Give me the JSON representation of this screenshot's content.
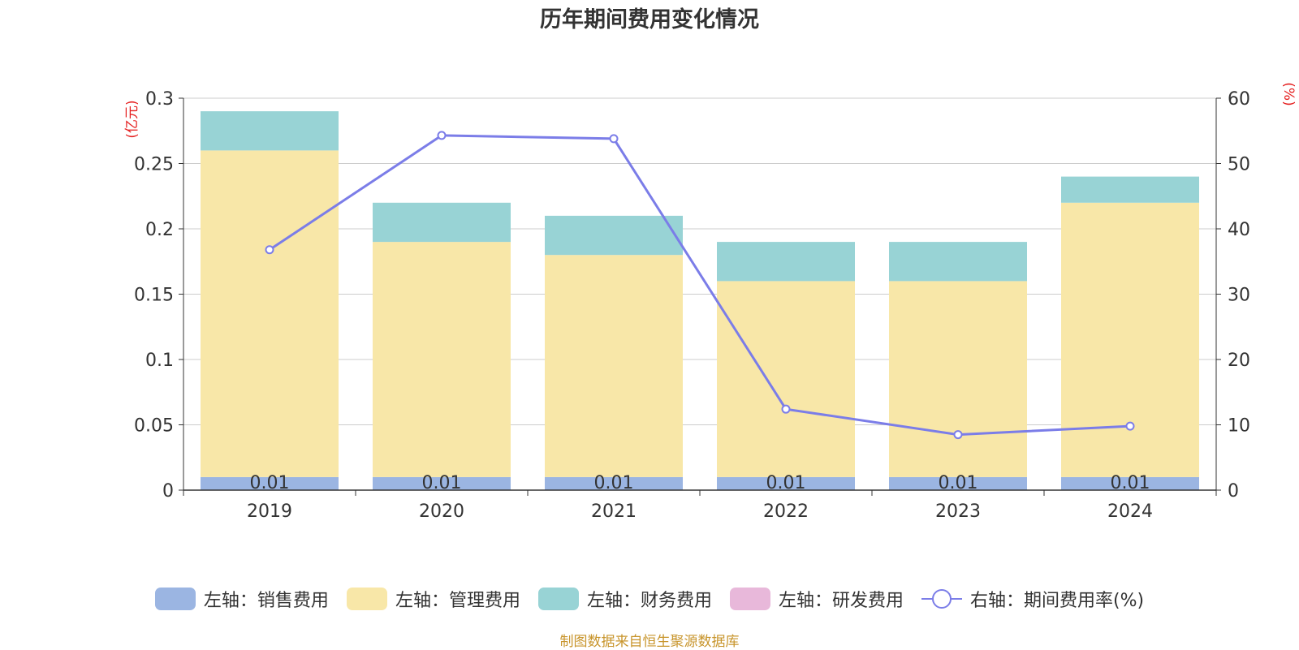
{
  "chart_data": {
    "type": "bar",
    "title": "历年期间费用变化情况",
    "categories": [
      "2019",
      "2020",
      "2021",
      "2022",
      "2023",
      "2024"
    ],
    "left_axis": {
      "label": "(亿元)",
      "ylim": [
        0,
        0.3
      ],
      "ticks": [
        "0",
        "0.05",
        "0.1",
        "0.15",
        "0.2",
        "0.25",
        "0.3"
      ]
    },
    "right_axis": {
      "label": "(%)",
      "ylim": [
        0,
        60
      ],
      "ticks": [
        "0",
        "10",
        "20",
        "30",
        "40",
        "50",
        "60"
      ]
    },
    "stacked": true,
    "series": [
      {
        "name": "左轴：销售费用",
        "color": "#9bb5e2",
        "values": [
          0.01,
          0.01,
          0.01,
          0.01,
          0.01,
          0.01
        ],
        "data_labels": [
          "0.01",
          "0.01",
          "0.01",
          "0.01",
          "0.01",
          "0.01"
        ]
      },
      {
        "name": "左轴：管理费用",
        "color": "#f8e7a8",
        "values": [
          0.25,
          0.18,
          0.17,
          0.15,
          0.15,
          0.21
        ]
      },
      {
        "name": "左轴：财务费用",
        "color": "#98d3d5",
        "values": [
          0.03,
          0.03,
          0.03,
          0.03,
          0.03,
          0.02
        ]
      },
      {
        "name": "左轴：研发费用",
        "color": "#e8b8da",
        "values": [
          0,
          0,
          0,
          0,
          0,
          0
        ]
      }
    ],
    "line_series": {
      "name": "右轴：期间费用率(%)",
      "color": "#7b7de8",
      "axis": "right",
      "values": [
        36.8,
        54.3,
        53.8,
        12.4,
        8.5,
        9.8
      ]
    },
    "grid": true,
    "legend_position": "bottom-center"
  },
  "source": "制图数据来自恒生聚源数据库"
}
